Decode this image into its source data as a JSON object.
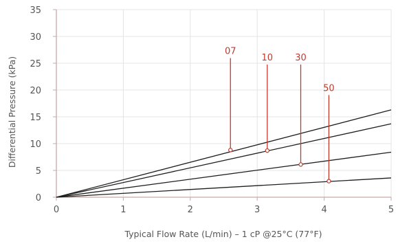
{
  "chart_data": {
    "type": "line",
    "xlabel": "Typical Flow Rate (L/min) – 1 cP @25°C (77°F)",
    "ylabel": "Differential Pressure (kPa)",
    "xlim": [
      0,
      5
    ],
    "ylim": [
      0,
      35
    ],
    "xticks": [
      "0",
      "1",
      "2",
      "3",
      "4",
      "5"
    ],
    "yticks": [
      "0",
      "5",
      "10",
      "15",
      "20",
      "25",
      "30",
      "35"
    ],
    "grid": true,
    "series": [
      {
        "name": "07",
        "x": [
          0,
          5
        ],
        "y": [
          0,
          16.3
        ]
      },
      {
        "name": "10",
        "x": [
          0,
          5
        ],
        "y": [
          0,
          13.7
        ]
      },
      {
        "name": "30",
        "x": [
          0,
          5
        ],
        "y": [
          0,
          8.4
        ]
      },
      {
        "name": "50",
        "x": [
          0,
          5
        ],
        "y": [
          0,
          3.6
        ]
      }
    ],
    "annotations": [
      {
        "label": "07",
        "x": 2.6,
        "y": 8.8,
        "label_y": 26.6
      },
      {
        "label": "10",
        "x": 3.15,
        "y": 8.7,
        "label_y": 25.4
      },
      {
        "label": "30",
        "x": 3.65,
        "y": 6.1,
        "label_y": 25.4
      },
      {
        "label": "50",
        "x": 4.07,
        "y": 3.0,
        "label_y": 19.7
      }
    ]
  },
  "colors": {
    "line": "#1e1e1e",
    "grid": "#e4e4e4",
    "axis": "#c9a7a7",
    "callout": "#c0392b",
    "text": "#555555"
  }
}
